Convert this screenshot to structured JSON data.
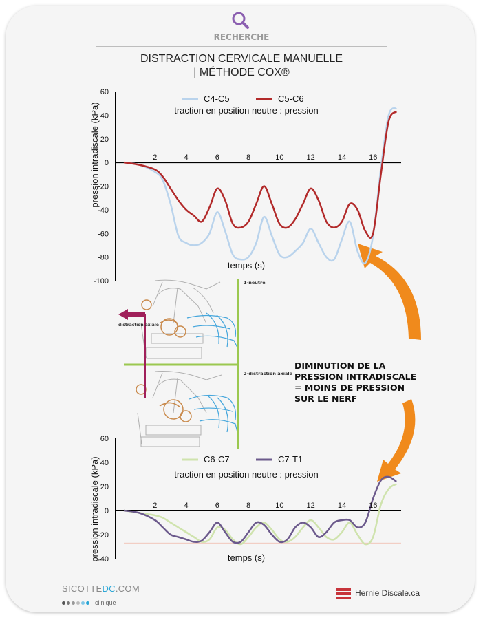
{
  "header": {
    "label": "RECHERCHE",
    "icon": "search-icon",
    "icon_color": "#8b5fb0"
  },
  "title": {
    "line1": "DISTRACTION CERVICALE MANUELLE",
    "line2": "| MÉTHODE COX®"
  },
  "chart_data": [
    {
      "type": "line",
      "title": "traction en position neutre : pression",
      "xlabel": "temps (s)",
      "ylabel": "pression intradiscale (kPa)",
      "xlim": [
        0,
        17.8
      ],
      "ylim": [
        -100,
        60
      ],
      "x_ticks": [
        2,
        4,
        6,
        8,
        10,
        12,
        14,
        16
      ],
      "y_ticks": [
        60,
        40,
        20,
        0,
        -20,
        -40,
        -60,
        -80,
        -100
      ],
      "reference_lines": [
        -52,
        -80
      ],
      "legend": "top-center",
      "series": [
        {
          "name": "C4-C5",
          "color": "#b9d3ec",
          "x": [
            0,
            1,
            2,
            2.5,
            3,
            3.5,
            4,
            4.5,
            5,
            5.5,
            6,
            6.5,
            7,
            7.5,
            8,
            8.5,
            9,
            9.5,
            10,
            10.5,
            11,
            11.5,
            12,
            12.5,
            13,
            13.5,
            14,
            14.5,
            15,
            15.5,
            16,
            16.5,
            17,
            17.5
          ],
          "y": [
            0,
            -2,
            -8,
            -15,
            -35,
            -62,
            -68,
            -70,
            -68,
            -60,
            -42,
            -58,
            -78,
            -82,
            -80,
            -68,
            -46,
            -62,
            -78,
            -80,
            -75,
            -68,
            -56,
            -68,
            -80,
            -82,
            -65,
            -50,
            -75,
            -85,
            -62,
            -5,
            40,
            46
          ]
        },
        {
          "name": "C5-C6",
          "color": "#b22a2a",
          "x": [
            0,
            1,
            2,
            2.5,
            3,
            3.5,
            4,
            4.5,
            5,
            5.5,
            6,
            6.5,
            7,
            7.5,
            8,
            8.5,
            9,
            9.5,
            10,
            10.5,
            11,
            11.5,
            12,
            12.5,
            13,
            13.5,
            14,
            14.5,
            15,
            15.5,
            16,
            16.5,
            17,
            17.5
          ],
          "y": [
            0,
            -2,
            -6,
            -12,
            -22,
            -32,
            -40,
            -45,
            -50,
            -38,
            -22,
            -32,
            -52,
            -55,
            -50,
            -35,
            -20,
            -35,
            -52,
            -55,
            -48,
            -35,
            -22,
            -32,
            -50,
            -55,
            -50,
            -35,
            -40,
            -58,
            -60,
            -10,
            35,
            43
          ]
        }
      ]
    },
    {
      "type": "line",
      "title": "traction en position neutre : pression",
      "xlabel": "temps (s)",
      "ylabel": "pression intradiscale (kPa)",
      "xlim": [
        0,
        17.8
      ],
      "ylim": [
        -40,
        60
      ],
      "x_ticks": [
        2,
        4,
        6,
        8,
        10,
        12,
        14,
        16
      ],
      "y_ticks": [
        60,
        40,
        20,
        0,
        -20,
        -40
      ],
      "reference_lines": [
        -27
      ],
      "legend": "top-center",
      "series": [
        {
          "name": "C6-C7",
          "color": "#cfe3ad",
          "x": [
            0,
            1,
            2,
            2.5,
            3,
            3.5,
            4,
            4.5,
            5,
            5.5,
            6,
            6.5,
            7,
            7.5,
            8,
            8.5,
            9,
            9.5,
            10,
            10.5,
            11,
            11.5,
            12,
            12.5,
            13,
            13.5,
            14,
            14.5,
            15,
            15.5,
            16,
            16.5,
            17,
            17.5
          ],
          "y": [
            0,
            -2,
            -4,
            -6,
            -10,
            -14,
            -18,
            -22,
            -26,
            -24,
            -14,
            -16,
            -24,
            -28,
            -22,
            -14,
            -10,
            -16,
            -24,
            -26,
            -22,
            -14,
            -8,
            -14,
            -22,
            -24,
            -18,
            -10,
            -20,
            -28,
            -22,
            5,
            18,
            22
          ]
        },
        {
          "name": "C7-T1",
          "color": "#6c5a8c",
          "x": [
            0,
            1,
            2,
            2.5,
            3,
            3.5,
            4,
            4.5,
            5,
            5.5,
            6,
            6.5,
            7,
            7.5,
            8,
            8.5,
            9,
            9.5,
            10,
            10.5,
            11,
            11.5,
            12,
            12.5,
            13,
            13.5,
            14,
            14.5,
            15,
            15.5,
            16,
            16.5,
            17,
            17.5
          ],
          "y": [
            0,
            -2,
            -8,
            -14,
            -20,
            -22,
            -24,
            -26,
            -25,
            -18,
            -10,
            -18,
            -26,
            -26,
            -18,
            -10,
            -12,
            -20,
            -26,
            -24,
            -14,
            -10,
            -14,
            -22,
            -18,
            -10,
            -8,
            -8,
            -14,
            -10,
            10,
            25,
            28,
            24
          ]
        }
      ]
    }
  ],
  "illustration": {
    "label_top": "1-neutre",
    "label_bottom": "2-distraction axiale",
    "arrow_label": "distraction axiale",
    "arrow_color": "#a0205a"
  },
  "callout": {
    "line1": "DIMINUTION DE LA",
    "line2": "PRESSION INTRADISCALE",
    "line3": "= MOINS DE PRESSION",
    "line4": "SUR LE NERF",
    "arrow_color": "#f08a1c"
  },
  "footer": {
    "brand_left_a": "SICOTTE",
    "brand_left_b": "DC",
    "brand_left_c": ".COM",
    "brand_left_sub": "clinique",
    "brand_right": "Hernie Discale.ca",
    "brand_right_color": "#c7343b"
  }
}
